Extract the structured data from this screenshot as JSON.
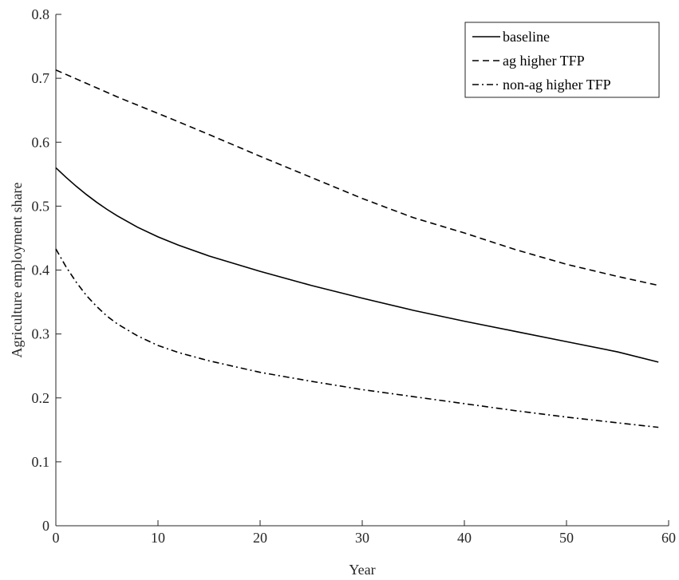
{
  "chart_data": {
    "type": "line",
    "title": "",
    "xlabel": "Year",
    "ylabel": "Agriculture employment share",
    "xlim": [
      0,
      60
    ],
    "ylim": [
      0,
      0.8
    ],
    "xticks": [
      0,
      10,
      20,
      30,
      40,
      50,
      60
    ],
    "yticks": [
      0,
      0.1,
      0.2,
      0.3,
      0.4,
      0.5,
      0.6,
      0.7,
      0.8
    ],
    "xtick_labels": [
      "0",
      "10",
      "20",
      "30",
      "40",
      "50",
      "60"
    ],
    "ytick_labels": [
      "0",
      "0.1",
      "0.2",
      "0.3",
      "0.4",
      "0.5",
      "0.6",
      "0.7",
      "0.8"
    ],
    "grid": false,
    "legend_position": "top-right",
    "x": [
      0,
      1,
      2,
      3,
      4,
      5,
      6,
      8,
      10,
      12,
      15,
      20,
      25,
      30,
      35,
      40,
      45,
      50,
      55,
      59
    ],
    "series": [
      {
        "name": "baseline",
        "style": "solid",
        "color": "#000000",
        "values": [
          0.56,
          0.545,
          0.531,
          0.518,
          0.506,
          0.495,
          0.485,
          0.467,
          0.452,
          0.439,
          0.422,
          0.398,
          0.376,
          0.356,
          0.337,
          0.32,
          0.304,
          0.288,
          0.272,
          0.256
        ]
      },
      {
        "name": "ag higher TFP",
        "style": "dashed",
        "color": "#000000",
        "values": [
          0.713,
          0.706,
          0.699,
          0.692,
          0.685,
          0.678,
          0.671,
          0.658,
          0.645,
          0.632,
          0.612,
          0.578,
          0.545,
          0.512,
          0.482,
          0.458,
          0.432,
          0.409,
          0.39,
          0.376
        ]
      },
      {
        "name": "non-ag higher TFP",
        "style": "dash-dot",
        "color": "#000000",
        "values": [
          0.433,
          0.405,
          0.381,
          0.36,
          0.343,
          0.328,
          0.316,
          0.297,
          0.282,
          0.271,
          0.258,
          0.24,
          0.226,
          0.213,
          0.202,
          0.191,
          0.18,
          0.17,
          0.161,
          0.154
        ]
      }
    ]
  }
}
